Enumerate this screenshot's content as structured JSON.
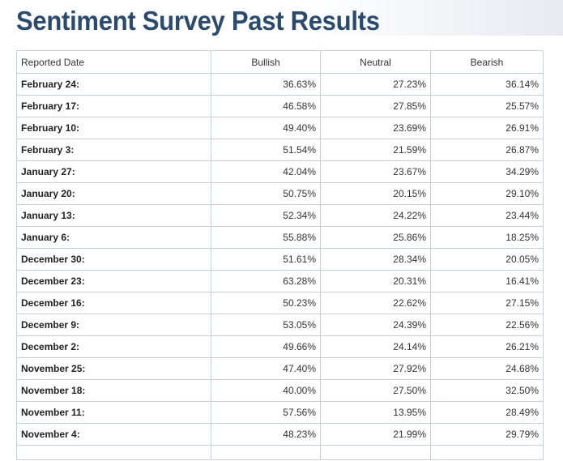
{
  "page": {
    "title": "Sentiment Survey Past Results"
  },
  "table": {
    "headers": {
      "date": "Reported Date",
      "bullish": "Bullish",
      "neutral": "Neutral",
      "bearish": "Bearish"
    },
    "rows": [
      {
        "date": "February 24:",
        "bullish": "36.63%",
        "neutral": "27.23%",
        "bearish": "36.14%"
      },
      {
        "date": "February 17:",
        "bullish": "46.58%",
        "neutral": "27.85%",
        "bearish": "25.57%"
      },
      {
        "date": "February 10:",
        "bullish": "49.40%",
        "neutral": "23.69%",
        "bearish": "26.91%"
      },
      {
        "date": "February 3:",
        "bullish": "51.54%",
        "neutral": "21.59%",
        "bearish": "26.87%"
      },
      {
        "date": "January 27:",
        "bullish": "42.04%",
        "neutral": "23.67%",
        "bearish": "34.29%"
      },
      {
        "date": "January 20:",
        "bullish": "50.75%",
        "neutral": "20.15%",
        "bearish": "29.10%"
      },
      {
        "date": "January 13:",
        "bullish": "52.34%",
        "neutral": "24.22%",
        "bearish": "23.44%"
      },
      {
        "date": "January 6:",
        "bullish": "55.88%",
        "neutral": "25.86%",
        "bearish": "18.25%"
      },
      {
        "date": "December 30:",
        "bullish": "51.61%",
        "neutral": "28.34%",
        "bearish": "20.05%"
      },
      {
        "date": "December 23:",
        "bullish": "63.28%",
        "neutral": "20.31%",
        "bearish": "16.41%"
      },
      {
        "date": "December 16:",
        "bullish": "50.23%",
        "neutral": "22.62%",
        "bearish": "27.15%"
      },
      {
        "date": "December 9:",
        "bullish": "53.05%",
        "neutral": "24.39%",
        "bearish": "22.56%"
      },
      {
        "date": "December 2:",
        "bullish": "49.66%",
        "neutral": "24.14%",
        "bearish": "26.21%"
      },
      {
        "date": "November 25:",
        "bullish": "47.40%",
        "neutral": "27.92%",
        "bearish": "24.68%"
      },
      {
        "date": "November 18:",
        "bullish": "40.00%",
        "neutral": "27.50%",
        "bearish": "32.50%"
      },
      {
        "date": "November 11:",
        "bullish": "57.56%",
        "neutral": "13.95%",
        "bearish": "28.49%"
      },
      {
        "date": "November 4:",
        "bullish": "48.23%",
        "neutral": "21.99%",
        "bearish": "29.79%"
      }
    ]
  }
}
